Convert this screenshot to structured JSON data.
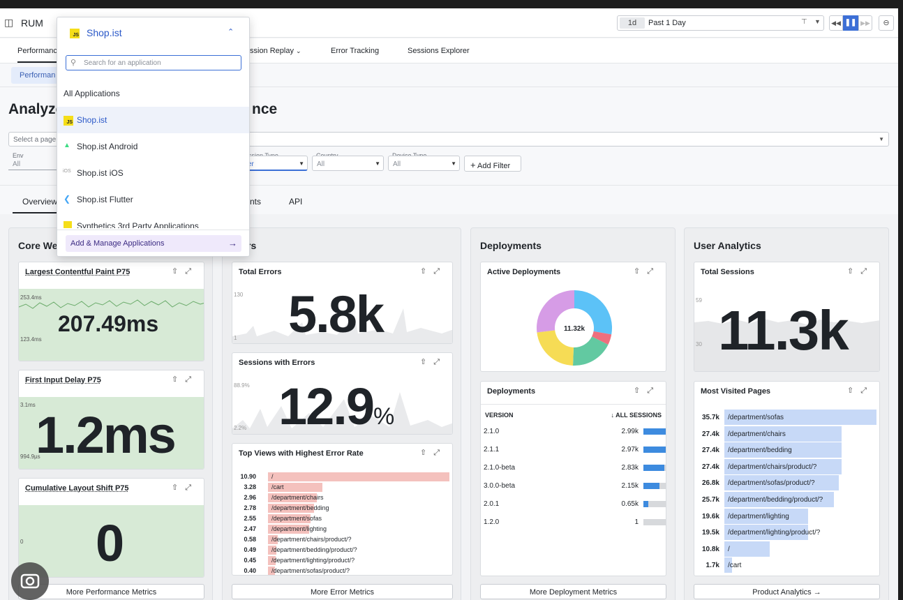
{
  "header": {
    "app_name": "RUM",
    "time_badge": "1d",
    "time_range": "Past 1 Day"
  },
  "nav": {
    "tabs": [
      "Performance",
      "Session Replay",
      "Error Tracking",
      "Sessions Explorer"
    ],
    "tab_partial": "Performanc",
    "tab_replay_partial": "ssion Replay",
    "sub_pill": "Performan"
  },
  "page": {
    "title_left": "Analyze",
    "title_right": "nce",
    "page_select_placeholder": "Select a page",
    "filters": {
      "env_label": "Env",
      "env_value": "All",
      "session_type_label": "ssion Type",
      "session_type_value": "er",
      "country_label": "Country",
      "country_value": "All",
      "device_label": "Device Type",
      "device_value": "All",
      "add_filter": "Add Filter"
    },
    "view_tabs": {
      "overview": "Overview",
      "partial": "nts",
      "api": "API"
    }
  },
  "core_web_vitals": {
    "panel_title": "Core We",
    "lcp": {
      "title": "Largest Contentful Paint P75",
      "value": "207.49ms",
      "axis_top": "253.4ms",
      "axis_bottom": "123.4ms"
    },
    "fid": {
      "title": "First Input Delay P75",
      "value": "1.2ms",
      "axis_top": "3.1ms",
      "axis_bottom": "994.9µs"
    },
    "cls": {
      "title": "Cumulative Layout Shift P75",
      "value": "0",
      "axis_bottom": "0"
    },
    "more": "More Performance Metrics"
  },
  "errors": {
    "panel_title": "rs",
    "total": {
      "title": "Total Errors",
      "value": "5.8k",
      "axis_top": "130",
      "axis_bottom": "1"
    },
    "sessions": {
      "title": "Sessions with Errors",
      "value": "12.9",
      "unit": "%",
      "axis_top": "88.9%",
      "axis_bottom": "2.2%"
    },
    "top_views": {
      "title": "Top Views with Highest Error Rate",
      "rows": [
        {
          "value": "10.90",
          "label": "/",
          "frac": 1.0
        },
        {
          "value": "3.28",
          "label": "/cart",
          "frac": 0.3
        },
        {
          "value": "2.96",
          "label": "/department/chairs",
          "frac": 0.27
        },
        {
          "value": "2.78",
          "label": "/department/bedding",
          "frac": 0.255
        },
        {
          "value": "2.55",
          "label": "/department/sofas",
          "frac": 0.234
        },
        {
          "value": "2.47",
          "label": "/department/lighting",
          "frac": 0.227
        },
        {
          "value": "0.58",
          "label": "/department/chairs/product/?",
          "frac": 0.053
        },
        {
          "value": "0.49",
          "label": "/department/bedding/product/?",
          "frac": 0.045
        },
        {
          "value": "0.45",
          "label": "/department/lighting/product/?",
          "frac": 0.041
        },
        {
          "value": "0.40",
          "label": "/department/sofas/product/?",
          "frac": 0.037
        }
      ]
    },
    "more": "More Error Metrics"
  },
  "deployments": {
    "panel_title": "Deployments",
    "active": {
      "title": "Active Deployments",
      "center": "11.32k"
    },
    "table": {
      "title": "Deployments",
      "col_version": "VERSION",
      "col_sessions": "ALL SESSIONS",
      "rows": [
        {
          "version": "2.1.0",
          "sessions": "2.99k",
          "frac": 1.0
        },
        {
          "version": "2.1.1",
          "sessions": "2.97k",
          "frac": 0.99
        },
        {
          "version": "2.1.0-beta",
          "sessions": "2.83k",
          "frac": 0.95
        },
        {
          "version": "3.0.0-beta",
          "sessions": "2.15k",
          "frac": 0.72
        },
        {
          "version": "2.0.1",
          "sessions": "0.65k",
          "frac": 0.22
        },
        {
          "version": "1.2.0",
          "sessions": "1",
          "frac": 0.0
        }
      ]
    },
    "more": "More Deployment Metrics",
    "colors": {
      "blue": "#5cc2f7",
      "red": "#ee6f7e",
      "green": "#62c9a1",
      "yellow": "#f6dc55",
      "purple": "#d69ce6"
    }
  },
  "user_analytics": {
    "panel_title": "User Analytics",
    "total": {
      "title": "Total Sessions",
      "value": "11.3k",
      "axis_top": "59",
      "axis_bottom": "30"
    },
    "most_visited": {
      "title": "Most Visited Pages",
      "rows": [
        {
          "value": "35.7k",
          "label": "/department/sofas",
          "frac": 1.0
        },
        {
          "value": "27.4k",
          "label": "/department/chairs",
          "frac": 0.77
        },
        {
          "value": "27.4k",
          "label": "/department/bedding",
          "frac": 0.77
        },
        {
          "value": "27.4k",
          "label": "/department/chairs/product/?",
          "frac": 0.77
        },
        {
          "value": "26.8k",
          "label": "/department/sofas/product/?",
          "frac": 0.75
        },
        {
          "value": "25.7k",
          "label": "/department/bedding/product/?",
          "frac": 0.72
        },
        {
          "value": "19.6k",
          "label": "/department/lighting",
          "frac": 0.55
        },
        {
          "value": "19.5k",
          "label": "/department/lighting/product/?",
          "frac": 0.55
        },
        {
          "value": "10.8k",
          "label": "/",
          "frac": 0.3
        },
        {
          "value": "1.7k",
          "label": "/cart",
          "frac": 0.05
        }
      ]
    },
    "more": "Product Analytics"
  },
  "app_dropdown": {
    "current": "Shop.ist",
    "search_placeholder": "Search for an application",
    "section": "All Applications",
    "items": [
      "Shop.ist",
      "Shop.ist Android",
      "Shop.ist iOS",
      "Shop.ist Flutter",
      "Synthetics 3rd Party Applications"
    ],
    "manage": "Add & Manage Applications",
    "js_badge": "JS"
  }
}
